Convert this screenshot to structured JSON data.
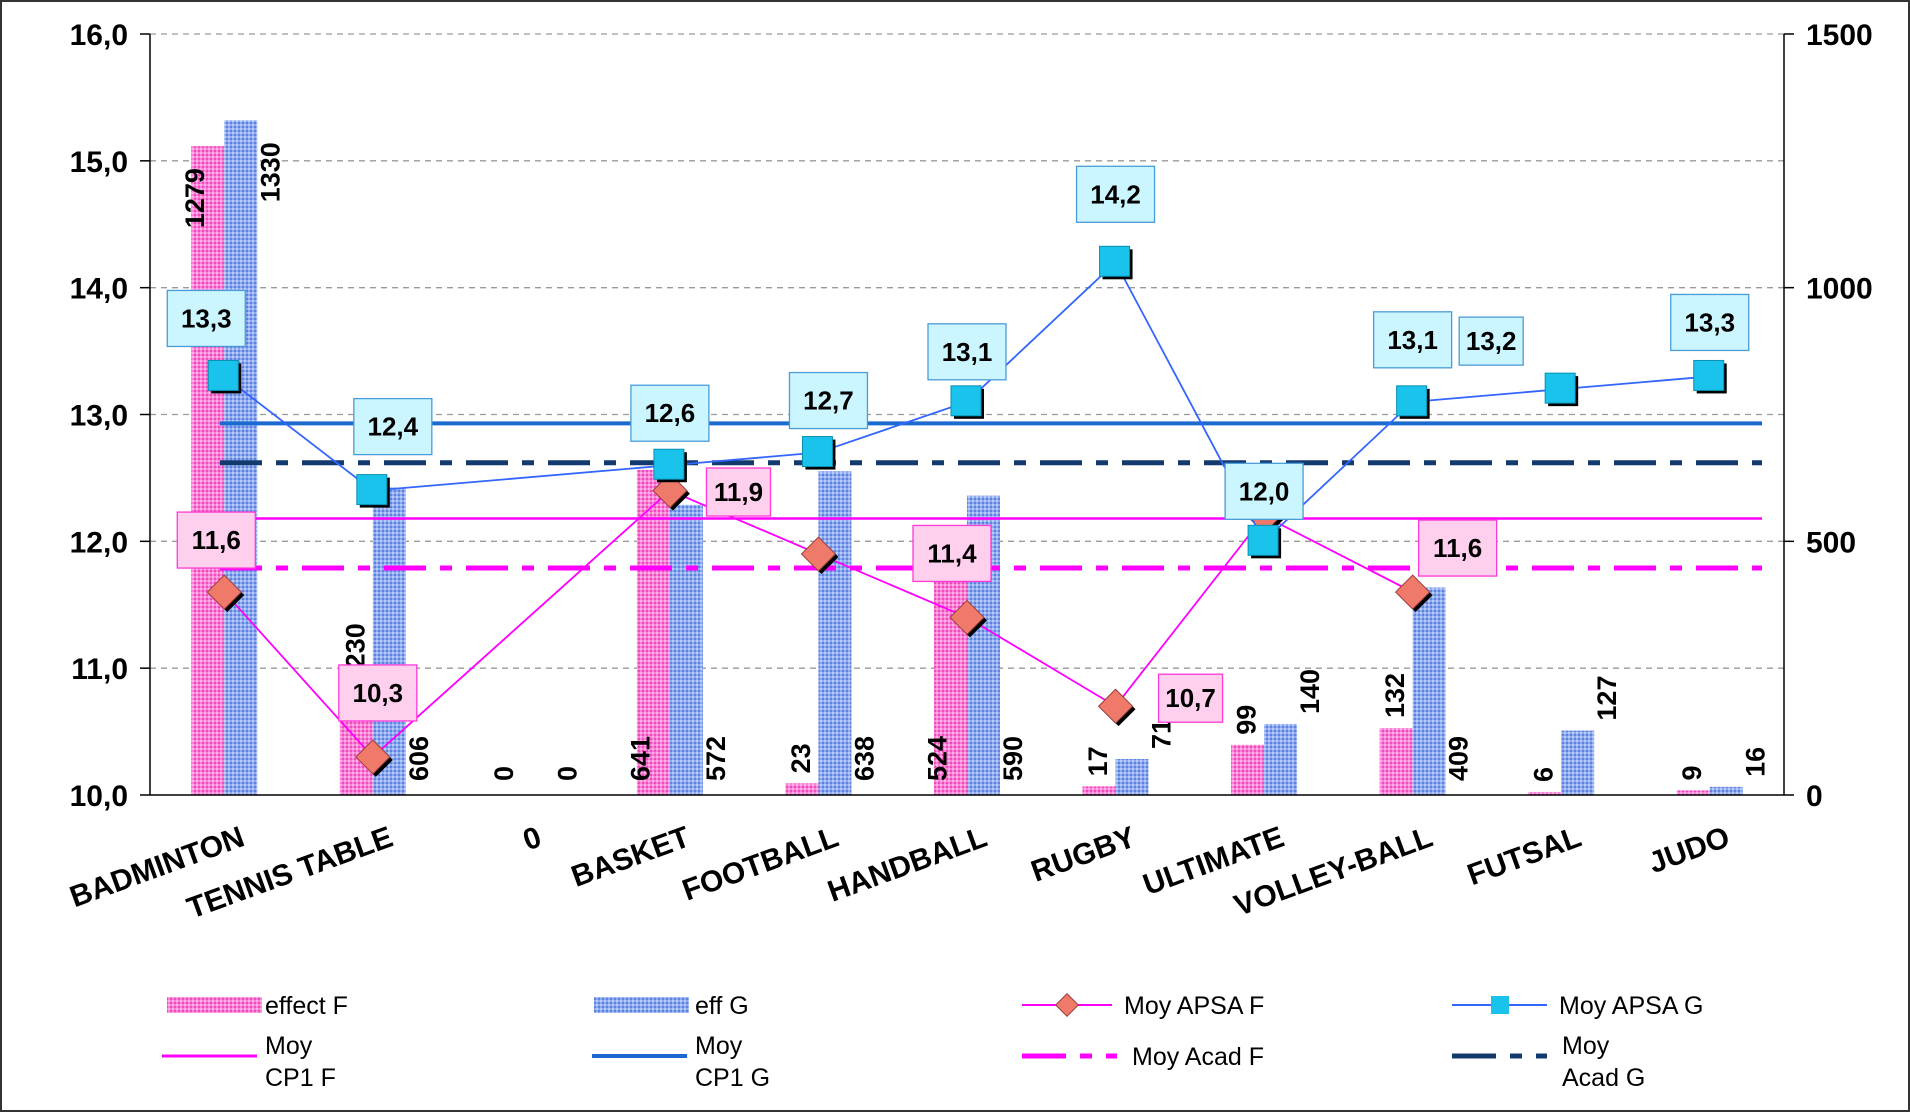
{
  "chart_data": {
    "type": "bar",
    "categories": [
      "BADMINTON",
      "TENNIS TABLE",
      "0",
      "BASKET",
      "FOOTBALL",
      "HANDBALL",
      "RUGBY",
      "ULTIMATE",
      "VOLLEY-BALL",
      "FUTSAL",
      "JUDO"
    ],
    "bar_series": [
      {
        "name": "effect F",
        "color": "#ff66cc",
        "axis": "right",
        "values": [
          1279,
          230,
          0,
          641,
          23,
          524,
          17,
          99,
          132,
          6,
          9
        ],
        "labels": [
          "1279",
          "230",
          "0",
          "641",
          "23",
          "524",
          "17",
          "99",
          "132",
          "6",
          "9"
        ]
      },
      {
        "name": "eff G",
        "color": "#7b9cf0",
        "axis": "right",
        "values": [
          1330,
          606,
          0,
          572,
          638,
          590,
          71,
          140,
          409,
          127,
          16
        ],
        "labels": [
          "1330",
          "606",
          "0",
          "572",
          "638",
          "590",
          "71",
          "140",
          "409",
          "127",
          "16"
        ]
      }
    ],
    "line_series": [
      {
        "name": "Moy APSA F",
        "color": "#ff00ff",
        "marker_color": "#f07a6a",
        "axis": "left",
        "values": [
          11.6,
          10.3,
          null,
          12.4,
          11.9,
          11.4,
          10.7,
          12.2,
          11.6,
          null,
          null
        ],
        "labels": [
          "11,6",
          "10,3",
          "",
          "",
          "11,9",
          "11,4",
          "10,7",
          "",
          "11,6",
          "",
          ""
        ]
      },
      {
        "name": "Moy APSA G",
        "color": "#3366ff",
        "marker_color": "#19c3eb",
        "axis": "left",
        "values": [
          13.3,
          12.4,
          null,
          12.6,
          12.7,
          13.1,
          14.2,
          12.0,
          13.1,
          13.2,
          13.3
        ],
        "labels": [
          "13,3",
          "12,4",
          "",
          "12,6",
          "12,7",
          "13,1",
          "14,2",
          "12,0",
          "13,1",
          "13,2",
          "13,3"
        ]
      }
    ],
    "reference_lines": [
      {
        "name": "Moy CP1  F",
        "value": 12.18,
        "color": "#ff00ff",
        "style": "solid"
      },
      {
        "name": "Moy CP1  G",
        "value": 12.93,
        "color": "#1a6ad0",
        "style": "solid"
      },
      {
        "name": "Moy Acad F",
        "value": 11.79,
        "color": "#ff00ff",
        "style": "dash-dot"
      },
      {
        "name": "Moy Acad G",
        "value": 12.62,
        "color": "#123a6e",
        "style": "dash-dot"
      }
    ],
    "y_left": {
      "min": 10,
      "max": 16,
      "ticks": [
        "10,0",
        "11,0",
        "12,0",
        "13,0",
        "14,0",
        "15,0",
        "16,0"
      ]
    },
    "y_right": {
      "min": 0,
      "max": 1500,
      "ticks": [
        "0",
        "500",
        "1000",
        "1500"
      ]
    },
    "grid": "horizontal dashed",
    "legend_position": "bottom"
  },
  "legend": [
    {
      "name": "effect F",
      "text": "effect F"
    },
    {
      "name": "eff G",
      "text": "eff G"
    },
    {
      "name": "Moy APSA F",
      "text": "Moy APSA F"
    },
    {
      "name": "Moy APSA G",
      "text": "Moy APSA G"
    },
    {
      "name": "Moy CP1 F",
      "line1": "Moy",
      "line2": "CP1  F"
    },
    {
      "name": "Moy CP1 G",
      "line1": "Moy",
      "line2": "CP1  G"
    },
    {
      "name": "Moy Acad F",
      "text": "Moy Acad F"
    },
    {
      "name": "Moy Acad G",
      "line1": "Moy",
      "line2": "Acad G"
    }
  ]
}
